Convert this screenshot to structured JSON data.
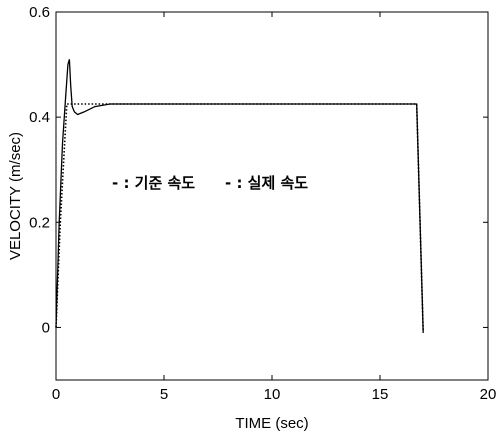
{
  "chart_data": {
    "type": "line",
    "title": "",
    "xlabel": "TIME (sec)",
    "ylabel": "VELOCITY (m/sec)",
    "xlim": [
      0,
      20
    ],
    "ylim": [
      -0.1,
      0.6
    ],
    "grid": false,
    "legend_position": "center-left",
    "x_ticks": [
      {
        "value": 0,
        "label": "0"
      },
      {
        "value": 5,
        "label": "5"
      },
      {
        "value": 10,
        "label": "10"
      },
      {
        "value": 15,
        "label": "15"
      },
      {
        "value": 20,
        "label": "20"
      }
    ],
    "y_ticks": [
      {
        "value": 0,
        "label": "0"
      },
      {
        "value": 0.2,
        "label": "0.2"
      },
      {
        "value": 0.4,
        "label": "0.4"
      },
      {
        "value": 0.6,
        "label": "0.6"
      }
    ],
    "series": [
      {
        "name": "기준 속도",
        "legend_label": "- : 기준 속도",
        "line_style": "dotted",
        "color": "#000000",
        "x": [
          0.0,
          0.2,
          0.5,
          0.55,
          16.7,
          17.0
        ],
        "y": [
          0.0,
          0.2,
          0.425,
          0.425,
          0.425,
          -0.01
        ]
      },
      {
        "name": "실제 속도",
        "legend_label": "- : 실제 속도",
        "line_style": "solid",
        "color": "#000000",
        "x": [
          0.0,
          0.15,
          0.3,
          0.45,
          0.55,
          0.62,
          0.68,
          0.75,
          0.85,
          1.0,
          1.3,
          1.8,
          2.5,
          3.5,
          16.7,
          17.0
        ],
        "y": [
          0.0,
          0.2,
          0.35,
          0.44,
          0.5,
          0.51,
          0.46,
          0.42,
          0.41,
          0.405,
          0.41,
          0.42,
          0.425,
          0.425,
          0.425,
          -0.01
        ]
      }
    ]
  }
}
